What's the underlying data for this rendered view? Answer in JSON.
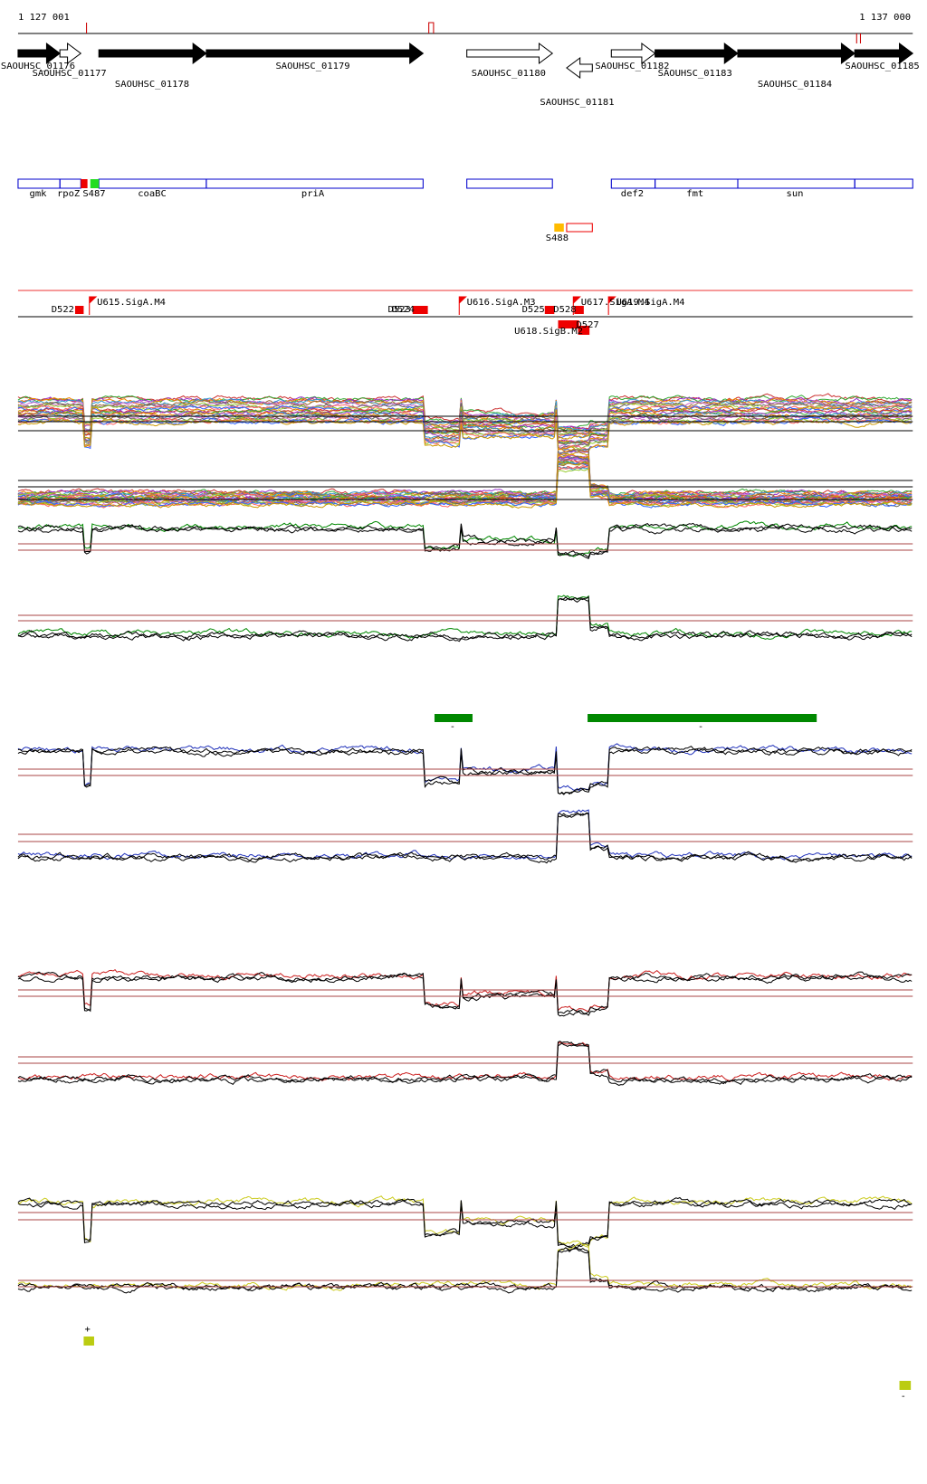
{
  "coordinates": {
    "start": "1 127 001",
    "end": "1 137 000"
  },
  "genes": [
    "SAOUHSC_01176",
    "SAOUHSC_01177",
    "SAOUHSC_01178",
    "SAOUHSC_01179",
    "SAOUHSC_01180",
    "SAOUHSC_01181",
    "SAOUHSC_01182",
    "SAOUHSC_01183",
    "SAOUHSC_01184",
    "SAOUHSC_01185"
  ],
  "annotations": [
    "gmk",
    "rpoZ",
    "S487",
    "coaBC",
    "priA",
    "def2",
    "fmt",
    "sun",
    "S488"
  ],
  "features": [
    "D522",
    "U615.SigA.M4",
    "D523",
    "D524",
    "U616.SigA.M3",
    "D525",
    "D528",
    "U617.SigA.M4",
    "U619.SigA.M4",
    "U618.SigB.M2",
    "D527"
  ],
  "strand_marks": [
    "-",
    "-",
    "+",
    "-"
  ]
}
